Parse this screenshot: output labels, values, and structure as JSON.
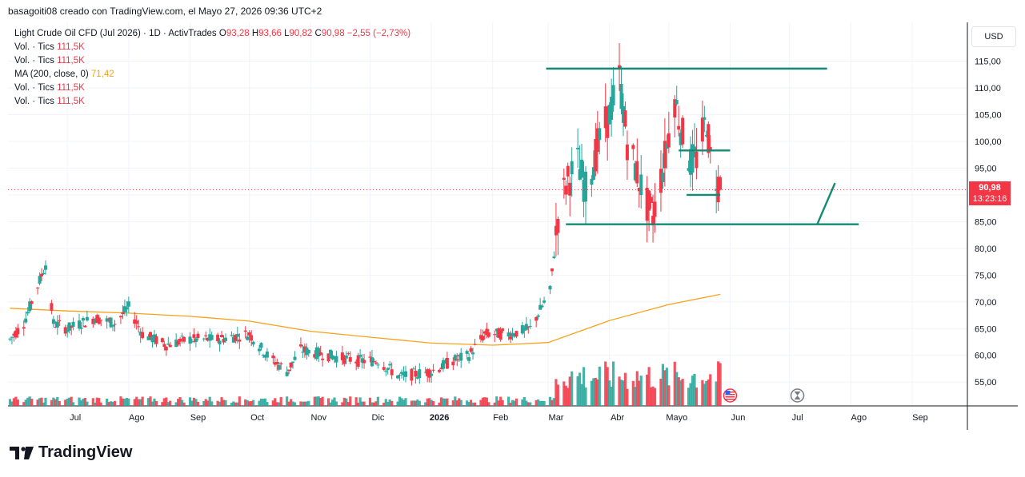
{
  "header": {
    "attribution": "basagoiti08 creado con TradingView.com, el Mayo 27, 2026 09:36 UTC+2"
  },
  "legend": {
    "symbol": "Light Crude Oil CFD (Jul 2026) · 1D · ActivTrades",
    "open_label": "O",
    "open": "93,28",
    "high_label": "H",
    "high": "93,66",
    "low_label": "L",
    "low": "90,82",
    "close_label": "C",
    "close": "90,98",
    "change": "−2,55 (−2,73%)",
    "rows": [
      {
        "label": "Vol. · Tics",
        "value": "111,5K",
        "type": "vol"
      },
      {
        "label": "Vol. · Tics",
        "value": "111,5K",
        "type": "vol"
      },
      {
        "label": "MA (200, close, 0)",
        "value": "71,42",
        "type": "ma"
      },
      {
        "label": "Vol. · Tics",
        "value": "111,5K",
        "type": "vol"
      },
      {
        "label": "Vol. · Tics",
        "value": "111,5K",
        "type": "vol"
      }
    ]
  },
  "currency": "USD",
  "last_price": {
    "price": "90,98",
    "countdown": "13:23:16"
  },
  "brand": {
    "name": "TradingView"
  },
  "colors": {
    "up": "#26a69a",
    "down": "#f23645",
    "ma": "#f7a21b",
    "drawing": "#138a74",
    "grid": "#f0f3fa"
  },
  "chart_data": {
    "type": "candlestick",
    "y_axis": {
      "ticks": [
        "115,00",
        "110,00",
        "105,00",
        "100,00",
        "95,00",
        "90,00",
        "85,00",
        "80,00",
        "75,00",
        "70,00",
        "65,00",
        "60,00",
        "55,00"
      ],
      "ylim": [
        51,
        120
      ]
    },
    "x_axis": {
      "ticks": [
        "Jul",
        "Ago",
        "Sep",
        "Oct",
        "Nov",
        "Dic",
        "2026",
        "Feb",
        "Mar",
        "Abr",
        "Mayo",
        "Jun",
        "Jul",
        "Ago",
        "Sep"
      ]
    },
    "series": [
      {
        "name": "Light Crude Oil CFD (Jul 2026)",
        "kind": "candles",
        "path": [
          [
            "2025-06-02",
            63
          ],
          [
            "2025-06-09",
            66
          ],
          [
            "2025-06-16",
            73
          ],
          [
            "2025-06-20",
            77
          ],
          [
            "2025-06-24",
            66
          ],
          [
            "2025-07-01",
            65
          ],
          [
            "2025-07-15",
            67
          ],
          [
            "2025-07-25",
            66
          ],
          [
            "2025-08-01",
            69
          ],
          [
            "2025-08-08",
            64
          ],
          [
            "2025-08-20",
            62
          ],
          [
            "2025-09-01",
            63
          ],
          [
            "2025-09-15",
            63
          ],
          [
            "2025-10-01",
            64
          ],
          [
            "2025-10-10",
            60
          ],
          [
            "2025-10-20",
            57
          ],
          [
            "2025-10-27",
            61
          ],
          [
            "2025-11-10",
            60
          ],
          [
            "2025-11-25",
            59
          ],
          [
            "2025-12-05",
            59
          ],
          [
            "2025-12-16",
            56
          ],
          [
            "2026-01-01",
            57
          ],
          [
            "2026-01-12",
            59
          ],
          [
            "2026-01-20",
            60
          ],
          [
            "2026-01-28",
            64
          ],
          [
            "2026-02-10",
            64
          ],
          [
            "2026-02-20",
            65
          ],
          [
            "2026-03-02",
            72
          ],
          [
            "2026-03-06",
            86
          ],
          [
            "2026-03-10",
            92
          ],
          [
            "2026-03-16",
            96
          ],
          [
            "2026-03-20",
            91
          ],
          [
            "2026-03-26",
            99
          ],
          [
            "2026-04-01",
            105
          ],
          [
            "2026-04-06",
            112
          ],
          [
            "2026-04-10",
            100
          ],
          [
            "2026-04-15",
            94
          ],
          [
            "2026-04-20",
            88
          ],
          [
            "2026-04-23",
            86
          ],
          [
            "2026-04-28",
            95
          ],
          [
            "2026-05-04",
            108
          ],
          [
            "2026-05-08",
            101
          ],
          [
            "2026-05-12",
            96
          ],
          [
            "2026-05-15",
            97
          ],
          [
            "2026-05-20",
            104
          ],
          [
            "2026-05-22",
            97
          ],
          [
            "2026-05-27",
            91
          ]
        ]
      },
      {
        "name": "MA (200, close, 0)",
        "kind": "line",
        "path": [
          [
            "2025-06-02",
            68.8
          ],
          [
            "2025-07-01",
            68.3
          ],
          [
            "2025-08-01",
            67.9
          ],
          [
            "2025-09-01",
            67.3
          ],
          [
            "2025-10-01",
            66.4
          ],
          [
            "2025-11-01",
            64.5
          ],
          [
            "2025-12-01",
            63.4
          ],
          [
            "2026-01-01",
            62.3
          ],
          [
            "2026-02-01",
            61.9
          ],
          [
            "2026-03-01",
            62.4
          ],
          [
            "2026-04-01",
            66.5
          ],
          [
            "2026-05-01",
            69.5
          ],
          [
            "2026-05-27",
            71.4
          ]
        ]
      }
    ],
    "annotations": {
      "horizontal_lines": [
        {
          "from": "2026-02-28",
          "to": "2026-07-20",
          "y": 113.6
        },
        {
          "from": "2026-03-10",
          "to": "2026-08-05",
          "y": 84.5
        },
        {
          "from": "2026-05-06",
          "to": "2026-06-01",
          "y": 98.3
        },
        {
          "from": "2026-05-10",
          "to": "2026-05-27",
          "y": 90.0
        }
      ],
      "trend_lines": [
        {
          "points": [
            [
              "2026-07-15",
              84.5
            ],
            [
              "2026-07-24",
              92.2
            ]
          ]
        }
      ]
    },
    "volume": "relative bars per candle (shown in bottom band)",
    "last_price_line": 90.98
  }
}
